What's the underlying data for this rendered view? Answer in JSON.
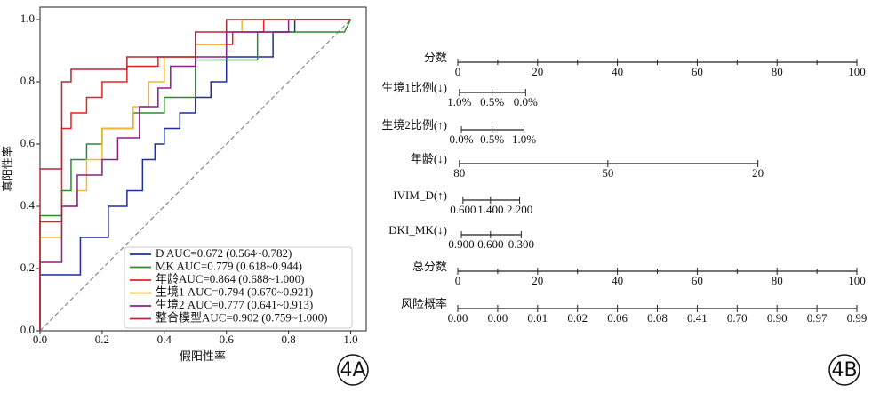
{
  "chart_data": [
    {
      "type": "line",
      "xlabel": "假阳性率",
      "ylabel": "真阳性率",
      "xlim": [
        0,
        1.05
      ],
      "ylim": [
        0,
        1.04
      ],
      "xticks": [
        {
          "value": 0,
          "label": "0.0"
        },
        {
          "value": 0.2,
          "label": "0.2"
        },
        {
          "value": 0.4,
          "label": "0.4"
        },
        {
          "value": 0.6,
          "label": "0.6"
        },
        {
          "value": 0.8,
          "label": "0.8"
        },
        {
          "value": 1,
          "label": "1.0"
        }
      ],
      "yticks": [
        {
          "value": 0,
          "label": "0.0"
        },
        {
          "value": 0.2,
          "label": "0.2"
        },
        {
          "value": 0.4,
          "label": "0.4"
        },
        {
          "value": 0.6,
          "label": "0.6"
        },
        {
          "value": 0.8,
          "label": "0.8"
        },
        {
          "value": 1,
          "label": "1.0"
        }
      ],
      "reference_line": {
        "x": [
          0,
          1
        ],
        "y": [
          0,
          1
        ],
        "color": "#888888"
      },
      "legend": "lower right",
      "series": [
        {
          "name": "D AUC=0.672 (0.564~0.782)",
          "color": "#1f2f9a",
          "x": [
            0,
            0,
            0.13,
            0.13,
            0.22,
            0.22,
            0.28,
            0.28,
            0.33,
            0.33,
            0.37,
            0.37,
            0.4,
            0.4,
            0.45,
            0.45,
            0.5,
            0.5,
            0.55,
            0.55,
            0.6,
            0.6,
            0.75,
            0.75,
            0.82,
            0.82,
            1
          ],
          "values": [
            0,
            0.18,
            0.18,
            0.3,
            0.3,
            0.4,
            0.4,
            0.45,
            0.45,
            0.55,
            0.55,
            0.6,
            0.6,
            0.65,
            0.65,
            0.7,
            0.7,
            0.75,
            0.75,
            0.8,
            0.8,
            0.88,
            0.88,
            0.96,
            0.96,
            1,
            1
          ]
        },
        {
          "name": "MK AUC=0.779 (0.618~0.944)",
          "color": "#2e8b2e",
          "x": [
            0,
            0,
            0.07,
            0.07,
            0.1,
            0.1,
            0.15,
            0.15,
            0.2,
            0.2,
            0.3,
            0.3,
            0.4,
            0.4,
            0.5,
            0.5,
            0.7,
            0.7,
            0.98,
            1
          ],
          "values": [
            0,
            0.37,
            0.37,
            0.45,
            0.45,
            0.55,
            0.55,
            0.6,
            0.6,
            0.65,
            0.65,
            0.7,
            0.7,
            0.75,
            0.75,
            0.87,
            0.87,
            0.96,
            0.96,
            1
          ]
        },
        {
          "name": "年龄AUC=0.864 (0.688~1.000)",
          "color": "#e8231f",
          "x": [
            0,
            0,
            0.07,
            0.07,
            0.1,
            0.1,
            0.15,
            0.15,
            0.2,
            0.2,
            0.28,
            0.28,
            0.38,
            0.38,
            0.5,
            0.5,
            0.62,
            0.62,
            0.72,
            0.72,
            1
          ],
          "values": [
            0,
            0.35,
            0.35,
            0.65,
            0.65,
            0.7,
            0.7,
            0.75,
            0.75,
            0.8,
            0.8,
            0.85,
            0.85,
            0.88,
            0.88,
            0.92,
            0.92,
            0.96,
            0.96,
            1,
            1
          ]
        },
        {
          "name": "生境1 AUC=0.794 (0.670~0.921)",
          "color": "#f5b731",
          "x": [
            0,
            0,
            0.07,
            0.07,
            0.12,
            0.12,
            0.15,
            0.15,
            0.2,
            0.2,
            0.3,
            0.3,
            0.35,
            0.35,
            0.4,
            0.4,
            0.5,
            0.5,
            0.6,
            0.6,
            0.65,
            0.65,
            1
          ],
          "values": [
            0,
            0.3,
            0.3,
            0.4,
            0.4,
            0.45,
            0.45,
            0.55,
            0.55,
            0.65,
            0.65,
            0.72,
            0.72,
            0.8,
            0.8,
            0.88,
            0.88,
            0.92,
            0.92,
            0.96,
            0.96,
            1,
            1
          ]
        },
        {
          "name": "生境2 AUC=0.777 (0.641~0.913)",
          "color": "#8b1f8b",
          "x": [
            0,
            0,
            0.07,
            0.07,
            0.12,
            0.12,
            0.2,
            0.2,
            0.25,
            0.25,
            0.32,
            0.32,
            0.38,
            0.38,
            0.42,
            0.42,
            0.5,
            0.5,
            0.6,
            0.6,
            0.8,
            0.8,
            1
          ],
          "values": [
            0,
            0.22,
            0.22,
            0.4,
            0.4,
            0.5,
            0.5,
            0.55,
            0.55,
            0.62,
            0.62,
            0.72,
            0.72,
            0.78,
            0.78,
            0.85,
            0.85,
            0.88,
            0.88,
            0.96,
            0.96,
            1,
            1
          ]
        },
        {
          "name": "整合模型AUC=0.902 (0.759~1.000)",
          "color": "#b02a3a",
          "x": [
            0,
            0,
            0.07,
            0.07,
            0.1,
            0.1,
            0.28,
            0.28,
            0.5,
            0.5,
            0.6,
            0.6,
            1
          ],
          "values": [
            0,
            0.52,
            0.52,
            0.8,
            0.8,
            0.84,
            0.84,
            0.88,
            0.88,
            0.96,
            0.96,
            1,
            1
          ]
        }
      ]
    },
    {
      "type": "nomogram",
      "xlim": [
        0,
        100
      ],
      "rows": [
        {
          "label": "分数",
          "ticks": [
            0,
            20,
            40,
            60,
            80,
            100
          ],
          "minor_ticks": [
            10,
            30,
            50,
            70,
            90
          ]
        },
        {
          "label": "生境1比例(↓)",
          "ticks": [
            {
              "value": 0.4,
              "label": "1.0%"
            },
            {
              "value": 8.6,
              "label": "0.5%"
            },
            {
              "value": 17,
              "label": "0.0%"
            }
          ]
        },
        {
          "label": "生境2比例(↑)",
          "ticks": [
            {
              "value": 0.9,
              "label": "0.0%"
            },
            {
              "value": 8.6,
              "label": "0.5%"
            },
            {
              "value": 16.6,
              "label": "1.0%"
            }
          ]
        },
        {
          "label": "年龄(↓)",
          "ticks": [
            {
              "value": 0.4,
              "label": "80"
            },
            {
              "value": 37.6,
              "label": "50"
            },
            {
              "value": 75.2,
              "label": "20"
            }
          ]
        },
        {
          "label": "IVIM_D(↑)",
          "ticks": [
            {
              "value": 1.3,
              "label": "0.600"
            },
            {
              "value": 8.2,
              "label": "1.400"
            },
            {
              "value": 15.5,
              "label": "2.200"
            }
          ]
        },
        {
          "label": "DKI_MK(↓)",
          "ticks": [
            {
              "value": 0.9,
              "label": "0.900"
            },
            {
              "value": 8.2,
              "label": "0.600"
            },
            {
              "value": 15.9,
              "label": "0.300"
            }
          ]
        },
        {
          "label": "总分数",
          "ticks": [
            0,
            20,
            40,
            60,
            80,
            100
          ],
          "minor_ticks": [
            10,
            30,
            50,
            70,
            90
          ]
        },
        {
          "label": "风险概率",
          "ticks": [
            {
              "value": 0,
              "label": "0.00"
            },
            {
              "value": 10,
              "label": "0.00"
            },
            {
              "value": 20,
              "label": "0.01"
            },
            {
              "value": 30,
              "label": "0.02"
            },
            {
              "value": 40,
              "label": "0.06"
            },
            {
              "value": 50,
              "label": "0.08"
            },
            {
              "value": 60,
              "label": "0.41"
            },
            {
              "value": 70,
              "label": "0.70"
            },
            {
              "value": 80,
              "label": "0.90"
            },
            {
              "value": 90,
              "label": "0.97"
            },
            {
              "value": 100,
              "label": "0.99"
            }
          ]
        }
      ]
    }
  ],
  "panel_labels": [
    "4A",
    "4B"
  ]
}
